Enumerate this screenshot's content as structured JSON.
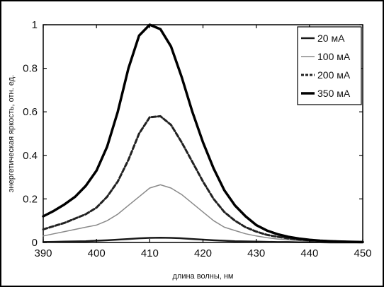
{
  "chart_data": {
    "type": "line",
    "title": "",
    "xlabel": "длина волны, нм",
    "ylabel": "энергетическая яркость, отн. ед.",
    "xlim": [
      390,
      450
    ],
    "ylim": [
      0,
      1
    ],
    "x_ticks": [
      "390",
      "400",
      "410",
      "420",
      "430",
      "440",
      "450"
    ],
    "y_ticks": [
      "0",
      "0.2",
      "0.4",
      "0.6",
      "0.8",
      "1"
    ],
    "grid": false,
    "legend_position": "top-right",
    "x": [
      390,
      392,
      394,
      396,
      398,
      400,
      402,
      404,
      406,
      408,
      410,
      412,
      414,
      416,
      418,
      420,
      422,
      424,
      426,
      428,
      430,
      432,
      434,
      436,
      438,
      440,
      442,
      444,
      446,
      448,
      450
    ],
    "series": [
      {
        "name": "20 мА",
        "color": "#1a1a1a",
        "dash": "solid",
        "width": 2.5,
        "values": [
          0.002,
          0.003,
          0.004,
          0.005,
          0.006,
          0.008,
          0.01,
          0.013,
          0.016,
          0.019,
          0.021,
          0.022,
          0.021,
          0.019,
          0.016,
          0.013,
          0.01,
          0.008,
          0.006,
          0.005,
          0.004,
          0.003,
          0.002,
          0.002,
          0.001,
          0.001,
          0.001,
          0.0,
          0.0,
          0.0,
          0.0
        ]
      },
      {
        "name": "100 мА",
        "color": "#8a8a8a",
        "dash": "solid",
        "width": 1.5,
        "values": [
          0.03,
          0.04,
          0.05,
          0.06,
          0.07,
          0.08,
          0.1,
          0.13,
          0.17,
          0.21,
          0.25,
          0.265,
          0.25,
          0.22,
          0.18,
          0.14,
          0.1,
          0.07,
          0.055,
          0.04,
          0.03,
          0.022,
          0.016,
          0.012,
          0.009,
          0.007,
          0.005,
          0.004,
          0.003,
          0.002,
          0.002
        ]
      },
      {
        "name": "200 мА",
        "color": "#222222",
        "dash": "6,3",
        "width": 3,
        "values": [
          0.06,
          0.075,
          0.09,
          0.11,
          0.13,
          0.16,
          0.21,
          0.28,
          0.38,
          0.5,
          0.575,
          0.58,
          0.54,
          0.46,
          0.37,
          0.28,
          0.2,
          0.14,
          0.1,
          0.07,
          0.05,
          0.035,
          0.026,
          0.019,
          0.014,
          0.01,
          0.008,
          0.006,
          0.004,
          0.003,
          0.002
        ]
      },
      {
        "name": "350 мА",
        "color": "#000000",
        "dash": "solid",
        "width": 3.5,
        "values": [
          0.12,
          0.145,
          0.175,
          0.21,
          0.26,
          0.33,
          0.44,
          0.6,
          0.8,
          0.95,
          1.0,
          0.98,
          0.9,
          0.76,
          0.6,
          0.46,
          0.34,
          0.24,
          0.17,
          0.12,
          0.08,
          0.055,
          0.038,
          0.026,
          0.018,
          0.012,
          0.008,
          0.006,
          0.004,
          0.003,
          0.002
        ]
      }
    ]
  }
}
